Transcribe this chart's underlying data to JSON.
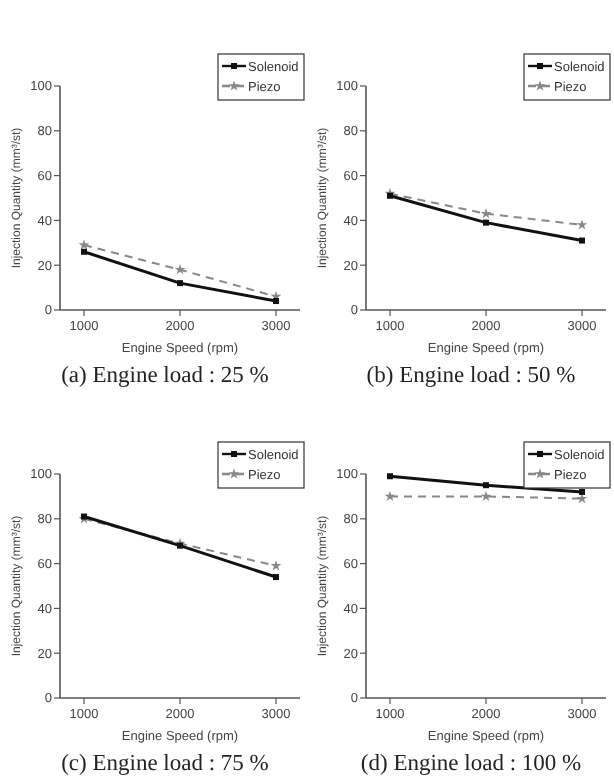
{
  "chart_data": [
    {
      "type": "line",
      "title": "(a) Engine load : 25 %",
      "xlabel": "Engine Speed (rpm)",
      "ylabel": "Injection Quantity (mm³/st)",
      "x": [
        1000,
        2000,
        3000
      ],
      "xlim": [
        750,
        3250
      ],
      "xticks": [
        1000,
        2000,
        3000
      ],
      "ylim": [
        0,
        100
      ],
      "yticks": [
        0,
        20,
        40,
        60,
        80,
        100
      ],
      "legend": "top right",
      "series": [
        {
          "name": "Solenoid",
          "color": "#111111",
          "values": [
            26,
            12,
            4
          ],
          "marker": "square",
          "line_style": "solid"
        },
        {
          "name": "Piezo",
          "color": "#888888",
          "values": [
            29,
            18,
            6
          ],
          "marker": "star",
          "line_style": "dashed"
        }
      ]
    },
    {
      "type": "line",
      "title": "(b) Engine load : 50 %",
      "xlabel": "Engine Speed (rpm)",
      "ylabel": "Injection Quantity (mm³/st)",
      "x": [
        1000,
        2000,
        3000
      ],
      "xlim": [
        750,
        3250
      ],
      "xticks": [
        1000,
        2000,
        3000
      ],
      "ylim": [
        0,
        100
      ],
      "yticks": [
        0,
        20,
        40,
        60,
        80,
        100
      ],
      "legend": "top right",
      "series": [
        {
          "name": "Solenoid",
          "color": "#111111",
          "values": [
            51,
            39,
            31
          ],
          "marker": "square",
          "line_style": "solid"
        },
        {
          "name": "Piezo",
          "color": "#888888",
          "values": [
            52,
            43,
            38
          ],
          "marker": "star",
          "line_style": "dashed"
        }
      ]
    },
    {
      "type": "line",
      "title": "(c) Engine load : 75 %",
      "xlabel": "Engine Speed (rpm)",
      "ylabel": "Injection Quantity (mm³/st)",
      "x": [
        1000,
        2000,
        3000
      ],
      "xlim": [
        750,
        3250
      ],
      "xticks": [
        1000,
        2000,
        3000
      ],
      "ylim": [
        0,
        100
      ],
      "yticks": [
        0,
        20,
        40,
        60,
        80,
        100
      ],
      "legend": "top right",
      "series": [
        {
          "name": "Solenoid",
          "color": "#111111",
          "values": [
            81,
            68,
            54
          ],
          "marker": "square",
          "line_style": "solid"
        },
        {
          "name": "Piezo",
          "color": "#888888",
          "values": [
            80,
            69,
            59
          ],
          "marker": "star",
          "line_style": "dashed"
        }
      ]
    },
    {
      "type": "line",
      "title": "(d) Engine load : 100 %",
      "xlabel": "Engine Speed (rpm)",
      "ylabel": "Injection Quantity (mm³/st)",
      "x": [
        1000,
        2000,
        3000
      ],
      "xlim": [
        750,
        3250
      ],
      "xticks": [
        1000,
        2000,
        3000
      ],
      "ylim": [
        0,
        100
      ],
      "yticks": [
        0,
        20,
        40,
        60,
        80,
        100
      ],
      "legend": "top right",
      "series": [
        {
          "name": "Solenoid",
          "color": "#111111",
          "values": [
            99,
            95,
            92
          ],
          "marker": "square",
          "line_style": "solid"
        },
        {
          "name": "Piezo",
          "color": "#888888",
          "values": [
            90,
            90,
            89
          ],
          "marker": "star",
          "line_style": "dashed"
        }
      ]
    }
  ]
}
